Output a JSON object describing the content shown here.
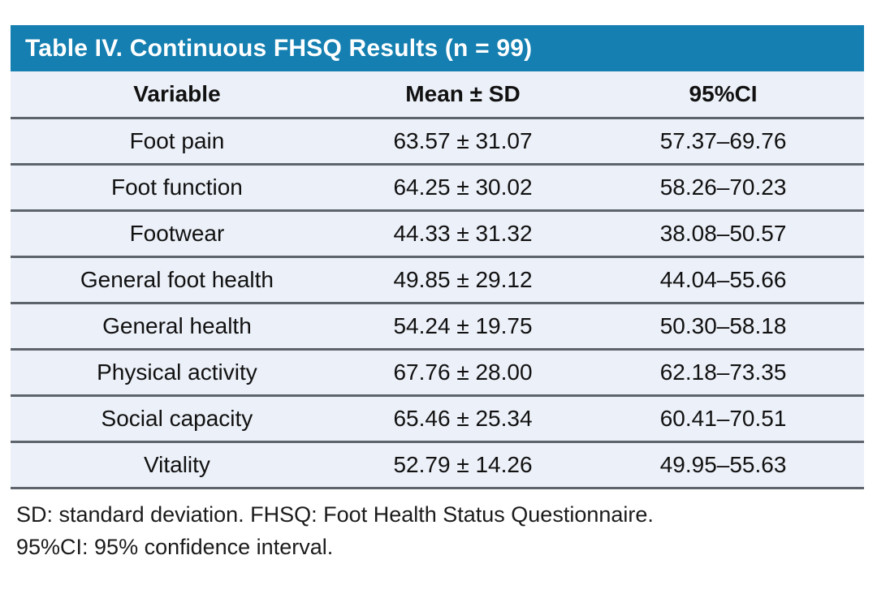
{
  "colors": {
    "title_bar_bg": "#147FB0",
    "title_text": "#ffffff",
    "row_bg": "#ECF0F8",
    "separator": "#5E646C",
    "body_text": "#111111"
  },
  "table": {
    "title": "Table IV. Continuous FHSQ Results (n = 99)",
    "columns": [
      "Variable",
      "Mean ± SD",
      "95%CI"
    ],
    "rows": [
      {
        "variable": "Foot pain",
        "mean_sd": "63.57 ± 31.07",
        "ci": "57.37–69.76"
      },
      {
        "variable": "Foot function",
        "mean_sd": "64.25 ± 30.02",
        "ci": "58.26–70.23"
      },
      {
        "variable": "Footwear",
        "mean_sd": "44.33 ± 31.32",
        "ci": "38.08–50.57"
      },
      {
        "variable": "General foot health",
        "mean_sd": "49.85 ± 29.12",
        "ci": "44.04–55.66"
      },
      {
        "variable": "General health",
        "mean_sd": "54.24 ± 19.75",
        "ci": "50.30–58.18"
      },
      {
        "variable": "Physical activity",
        "mean_sd": "67.76 ± 28.00",
        "ci": "62.18–73.35"
      },
      {
        "variable": "Social capacity",
        "mean_sd": "65.46 ± 25.34",
        "ci": "60.41–70.51"
      },
      {
        "variable": "Vitality",
        "mean_sd": "52.79 ± 14.26",
        "ci": "49.95–55.63"
      }
    ],
    "footnotes": [
      "SD: standard deviation. FHSQ: Foot Health Status Questionnaire.",
      "95%CI: 95% confidence interval."
    ]
  }
}
